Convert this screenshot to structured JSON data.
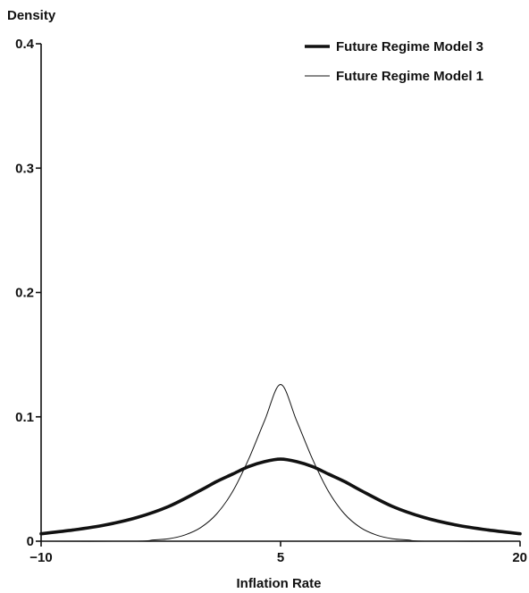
{
  "chart_data": {
    "type": "line",
    "title": "",
    "xlabel": "Inflation Rate",
    "ylabel": "Density",
    "xlim": [
      -10,
      20
    ],
    "ylim": [
      0,
      0.4
    ],
    "xticks": [
      -10,
      5,
      20
    ],
    "xtick_labels": [
      "−10",
      "5",
      "20"
    ],
    "yticks": [
      0,
      0.1,
      0.2,
      0.3,
      0.4
    ],
    "ytick_labels": [
      "0",
      "0.1",
      "0.2",
      "0.3",
      "0.4"
    ],
    "grid": false,
    "legend_position": "top-right",
    "series": [
      {
        "name": "Future Regime Model 3",
        "color": "#111111",
        "style": "thick",
        "x": [
          -10,
          -8,
          -6,
          -4,
          -2,
          0,
          1,
          2,
          3,
          4,
          5,
          6,
          7,
          8,
          9,
          10,
          12,
          14,
          16,
          18,
          20
        ],
        "y": [
          0.006,
          0.009,
          0.013,
          0.019,
          0.028,
          0.041,
          0.048,
          0.054,
          0.06,
          0.064,
          0.066,
          0.064,
          0.06,
          0.054,
          0.048,
          0.041,
          0.028,
          0.019,
          0.013,
          0.009,
          0.006
        ]
      },
      {
        "name": "Future Regime Model 1",
        "color": "#111111",
        "style": "thin",
        "x": [
          -10,
          -4,
          -3,
          -2,
          -1,
          0,
          1,
          2,
          3,
          4,
          5,
          6,
          7,
          8,
          9,
          10,
          11,
          12,
          13,
          14,
          20
        ],
        "y": [
          0.0,
          0.0,
          0.001,
          0.002,
          0.005,
          0.011,
          0.022,
          0.04,
          0.066,
          0.097,
          0.126,
          0.097,
          0.066,
          0.04,
          0.022,
          0.011,
          0.005,
          0.002,
          0.001,
          0.0,
          0.0
        ]
      }
    ]
  }
}
